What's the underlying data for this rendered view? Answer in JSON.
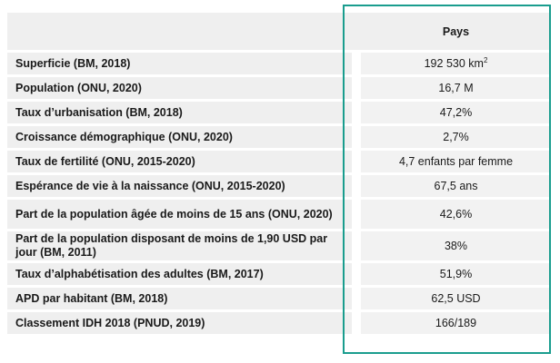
{
  "header": {
    "label": "",
    "value": "Pays"
  },
  "rows": [
    {
      "label": "Superficie (BM, 2018)",
      "value": "192 530 km",
      "sup": "2"
    },
    {
      "label": "Population (ONU, 2020)",
      "value": "16,7 M"
    },
    {
      "label": "Taux d’urbanisation (BM, 2018)",
      "value": "47,2%"
    },
    {
      "label": "Croissance démographique (ONU, 2020)",
      "value": "2,7%"
    },
    {
      "label": "Taux de fertilité (ONU, 2015-2020)",
      "value": "4,7 enfants par femme"
    },
    {
      "label": "Espérance de vie à la naissance (ONU, 2015-2020)",
      "value": "67,5 ans"
    },
    {
      "label": "Part de la population âgée de moins de 15 ans (ONU, 2020)",
      "value": "42,6%"
    },
    {
      "label": "Part de la population disposant de moins de 1,90 USD par jour (BM, 2011)",
      "value": "38%"
    },
    {
      "label": "Taux d’alphabétisation des adultes (BM, 2017)",
      "value": "51,9%"
    },
    {
      "label": "APD par habitant (BM, 2018)",
      "value": "62,5 USD"
    },
    {
      "label": "Classement IDH 2018 (PNUD, 2019)",
      "value": "166/189"
    }
  ],
  "colors": {
    "highlight_border": "#1a9d8e",
    "cell_background": "#efefef"
  }
}
